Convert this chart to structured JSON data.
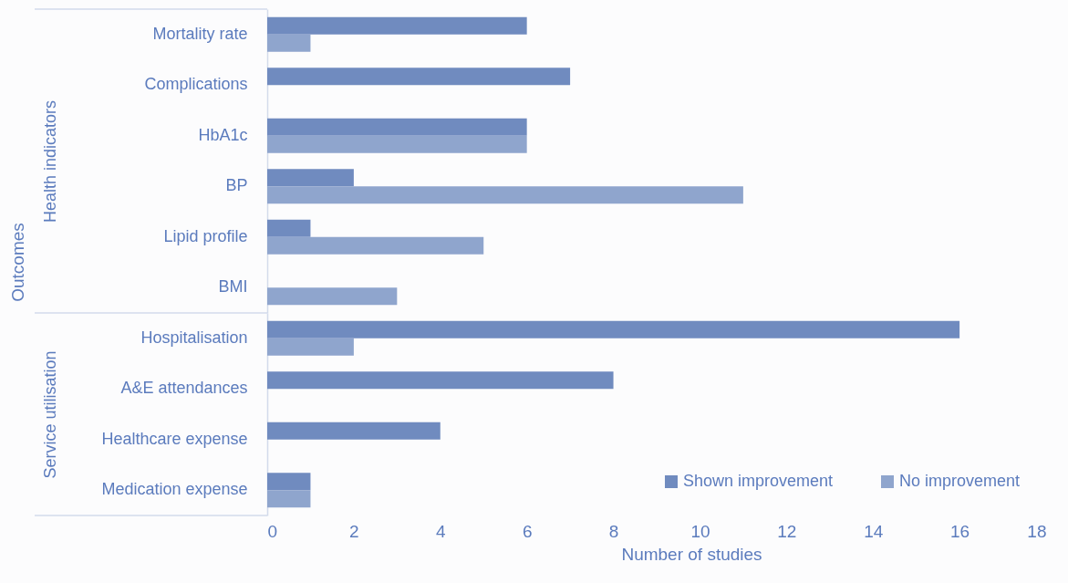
{
  "chart_data": [
    {
      "type": "bar",
      "orientation": "horizontal",
      "ylabel": "Health indicators",
      "categories": [
        "Mortality rate",
        "Complications",
        "HbA1c",
        "BP",
        "Lipid profile",
        "BMI"
      ],
      "series": [
        {
          "color": "#708bbf",
          "values": [
            6,
            7,
            6,
            2,
            1,
            null
          ]
        },
        {
          "color": "#8fa5cd",
          "values": [
            1,
            null,
            6,
            11,
            5,
            3
          ]
        }
      ],
      "xlim": [
        0,
        18
      ],
      "tick_labels": "y",
      "annotations": [
        "Outcomes"
      ]
    },
    {
      "type": "bar",
      "orientation": "horizontal",
      "xlabel": "Number of studies",
      "ylabel": "Service utilisation",
      "categories": [
        "Hospitalisation",
        "A&E attendances",
        "Healthcare expense",
        "Medication expense"
      ],
      "series": [
        {
          "name": "Shown improvement",
          "color": "#708bbf",
          "values": [
            16,
            8,
            4,
            1
          ]
        },
        {
          "name": "No improvement",
          "color": "#8fa5cd",
          "values": [
            2,
            null,
            null,
            1
          ]
        }
      ],
      "xlim": [
        0,
        18
      ],
      "xticks": [
        0,
        2,
        4,
        6,
        8,
        10,
        12,
        14,
        16,
        18
      ],
      "legend": "bottom right"
    }
  ]
}
